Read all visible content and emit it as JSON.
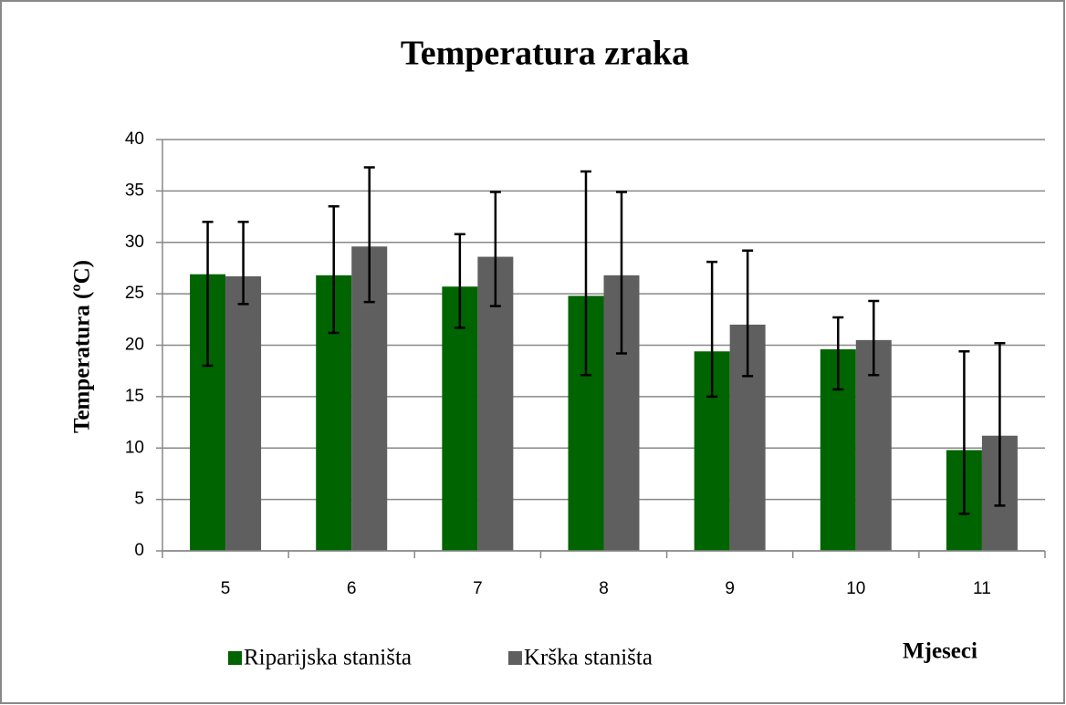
{
  "chart_data": {
    "type": "bar",
    "title": "Temperatura zraka",
    "y_label": "Temperatura (ºC)",
    "x_label": "Mjeseci",
    "categories": [
      "5",
      "6",
      "7",
      "8",
      "9",
      "10",
      "11"
    ],
    "series": [
      {
        "name": "Riparijska staništa",
        "color": "#006400",
        "values": [
          26.9,
          26.8,
          25.7,
          24.8,
          19.4,
          19.6,
          9.8
        ],
        "lower": [
          18,
          21.2,
          21.7,
          17.1,
          15,
          15.7,
          3.6
        ],
        "upper": [
          32,
          33.5,
          30.8,
          36.9,
          28.1,
          22.7,
          19.4
        ]
      },
      {
        "name": "Krška staništa",
        "color": "#5f5f5f",
        "values": [
          26.7,
          29.6,
          28.6,
          26.8,
          22.0,
          20.5,
          11.2
        ],
        "lower": [
          24,
          24.2,
          23.8,
          19.2,
          17,
          17.1,
          4.4
        ],
        "upper": [
          32,
          37.3,
          34.9,
          34.9,
          29.2,
          24.3,
          20.2
        ]
      }
    ],
    "ylim": [
      0,
      40
    ],
    "yticks": [
      0,
      5,
      10,
      15,
      20,
      25,
      30,
      35,
      40
    ],
    "grid": true
  }
}
